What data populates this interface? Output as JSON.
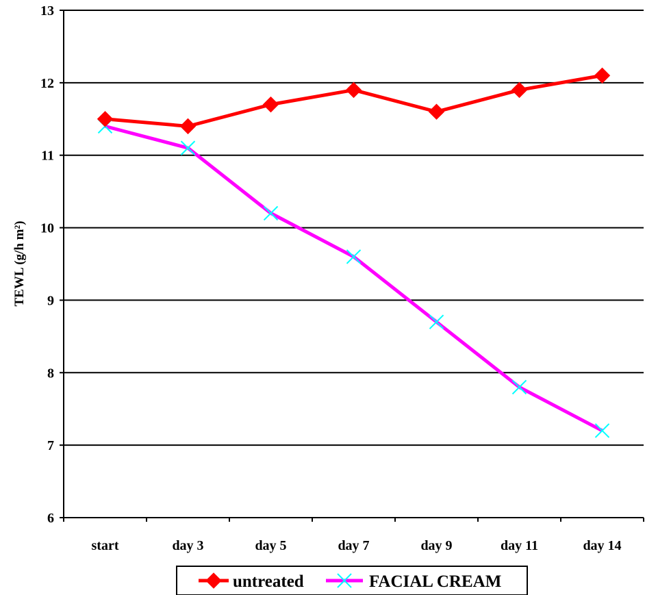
{
  "chart_data": {
    "type": "line",
    "title": "",
    "xlabel": "",
    "ylabel": "TEWL (g/h m²)",
    "categories": [
      "start",
      "day 3",
      "day 5",
      "day 7",
      "day 9",
      "day 11",
      "day 14"
    ],
    "ylim": [
      6,
      13
    ],
    "yticks": [
      6,
      7,
      8,
      9,
      10,
      11,
      12,
      13
    ],
    "grid": true,
    "legend_position": "bottom",
    "series": [
      {
        "name": "untreated",
        "values": [
          11.5,
          11.4,
          11.7,
          11.9,
          11.6,
          11.9,
          12.1
        ],
        "color": "#ff0000",
        "marker": "diamond"
      },
      {
        "name": "FACIAL CREAM",
        "values": [
          11.4,
          11.1,
          10.2,
          9.6,
          8.7,
          7.8,
          7.2
        ],
        "color": "#ff00ff",
        "marker": "x",
        "marker_color": "#00ffff"
      }
    ]
  }
}
